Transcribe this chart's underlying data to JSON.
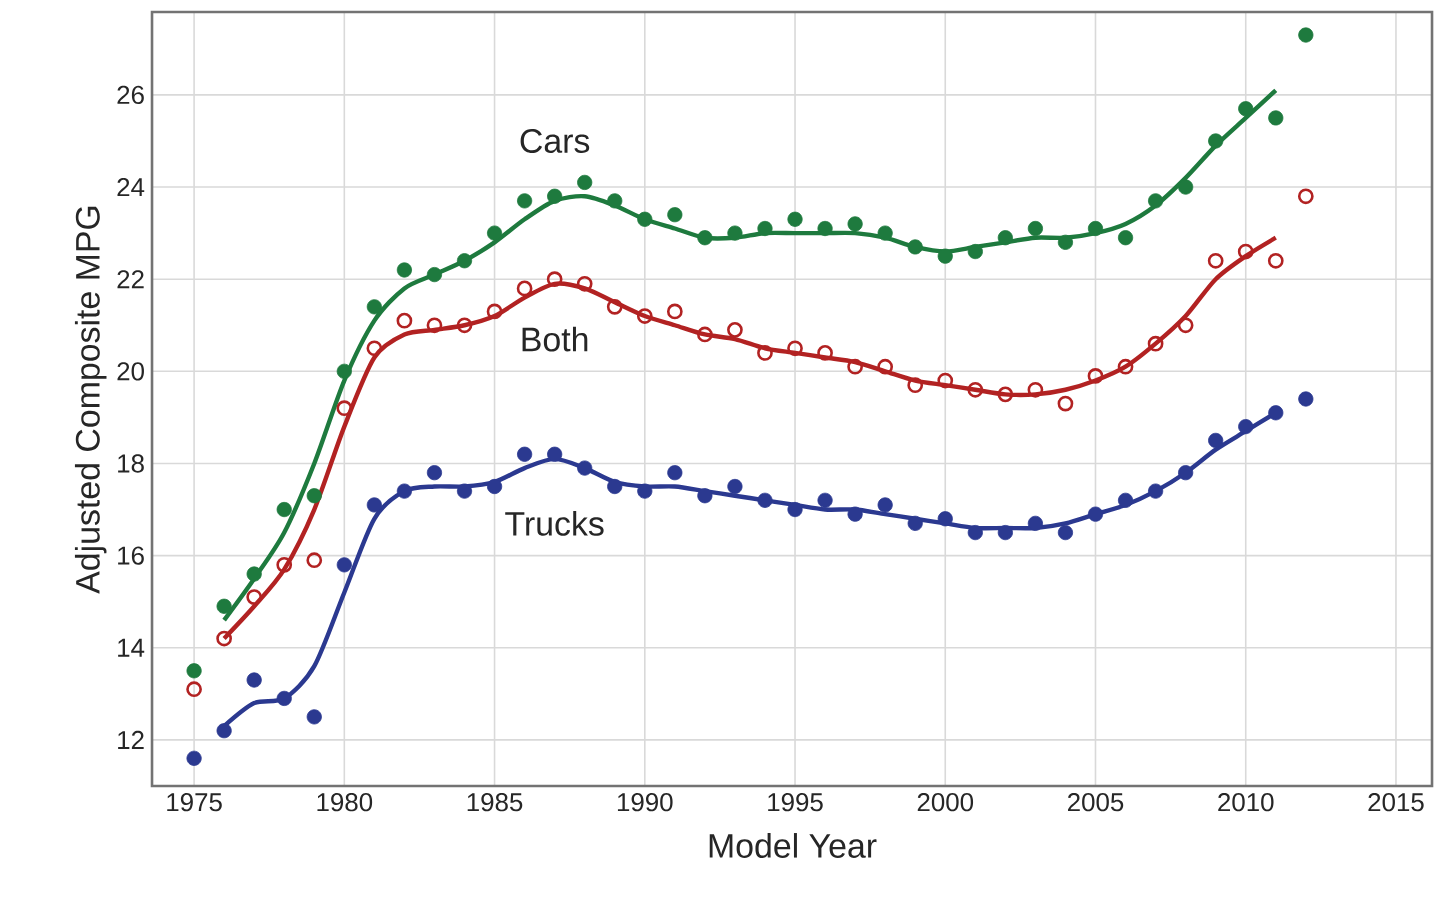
{
  "chart_data": {
    "type": "scatter",
    "xlabel": "Model Year",
    "ylabel": "Adjusted Composite MPG",
    "xlim": [
      1973.6,
      2016.2
    ],
    "ylim": [
      11,
      27.8
    ],
    "xticks": [
      1975,
      1980,
      1985,
      1990,
      1995,
      2000,
      2005,
      2010,
      2015
    ],
    "yticks": [
      12,
      14,
      16,
      18,
      20,
      22,
      24,
      26
    ],
    "grid": true,
    "series": [
      {
        "name": "Cars",
        "marker": "circle",
        "color": "#1e7a3e",
        "x": [
          1975,
          1976,
          1977,
          1978,
          1979,
          1980,
          1981,
          1982,
          1983,
          1984,
          1985,
          1986,
          1987,
          1988,
          1989,
          1990,
          1991,
          1992,
          1993,
          1994,
          1995,
          1996,
          1997,
          1998,
          1999,
          2000,
          2001,
          2002,
          2003,
          2004,
          2005,
          2006,
          2007,
          2008,
          2009,
          2010,
          2011,
          2012
        ],
        "values": [
          13.5,
          14.9,
          15.6,
          17.0,
          17.3,
          20.0,
          21.4,
          22.2,
          22.1,
          22.4,
          23.0,
          23.7,
          23.8,
          24.1,
          23.7,
          23.3,
          23.4,
          22.9,
          23.0,
          23.1,
          23.3,
          23.1,
          23.2,
          23.0,
          22.7,
          22.5,
          22.6,
          22.9,
          23.1,
          22.8,
          23.1,
          22.9,
          23.7,
          24.0,
          25.0,
          25.7,
          25.5,
          27.3
        ]
      },
      {
        "name": "Both",
        "marker": "circle",
        "color": "#b22222",
        "x": [
          1975,
          1976,
          1977,
          1978,
          1979,
          1980,
          1981,
          1982,
          1983,
          1984,
          1985,
          1986,
          1987,
          1988,
          1989,
          1990,
          1991,
          1992,
          1993,
          1994,
          1995,
          1996,
          1997,
          1998,
          1999,
          2000,
          2001,
          2002,
          2003,
          2004,
          2005,
          2006,
          2007,
          2008,
          2009,
          2010,
          2011,
          2012
        ],
        "values": [
          13.1,
          14.2,
          15.1,
          15.8,
          15.9,
          19.2,
          20.5,
          21.1,
          21.0,
          21.0,
          21.3,
          21.8,
          22.0,
          21.9,
          21.4,
          21.2,
          21.3,
          20.8,
          20.9,
          20.4,
          20.5,
          20.4,
          20.1,
          20.1,
          19.7,
          19.8,
          19.6,
          19.5,
          19.6,
          19.3,
          19.9,
          20.1,
          20.6,
          21.0,
          22.4,
          22.6,
          22.4,
          23.8
        ]
      },
      {
        "name": "Trucks",
        "marker": "circle",
        "color": "#2b3990",
        "x": [
          1975,
          1976,
          1977,
          1978,
          1979,
          1980,
          1981,
          1982,
          1983,
          1984,
          1985,
          1986,
          1987,
          1988,
          1989,
          1990,
          1991,
          1992,
          1993,
          1994,
          1995,
          1996,
          1997,
          1998,
          1999,
          2000,
          2001,
          2002,
          2003,
          2004,
          2005,
          2006,
          2007,
          2008,
          2009,
          2010,
          2011,
          2012
        ],
        "values": [
          11.6,
          12.2,
          13.3,
          12.9,
          12.5,
          15.8,
          17.1,
          17.4,
          17.8,
          17.4,
          17.5,
          18.2,
          18.2,
          17.9,
          17.5,
          17.4,
          17.8,
          17.3,
          17.5,
          17.2,
          17.0,
          17.2,
          16.9,
          17.1,
          16.7,
          16.8,
          16.5,
          16.5,
          16.7,
          16.5,
          16.9,
          17.2,
          17.4,
          17.8,
          18.5,
          18.8,
          19.1,
          19.4
        ]
      },
      {
        "type": "line",
        "marker": "none",
        "color": "#1e7a3e",
        "x": [
          1976,
          1977,
          1978,
          1979,
          1980,
          1981,
          1982,
          1983,
          1984,
          1985,
          1986,
          1987,
          1988,
          1989,
          1990,
          1991,
          1992,
          1993,
          1994,
          1995,
          1996,
          1997,
          1998,
          1999,
          2000,
          2001,
          2002,
          2003,
          2004,
          2005,
          2006,
          2007,
          2008,
          2009,
          2010,
          2011
        ],
        "values": [
          14.6,
          15.5,
          16.5,
          18.0,
          19.8,
          21.1,
          21.8,
          22.1,
          22.4,
          22.8,
          23.3,
          23.7,
          23.8,
          23.6,
          23.3,
          23.1,
          22.9,
          22.9,
          23.0,
          23.0,
          23.0,
          23.0,
          22.9,
          22.7,
          22.6,
          22.7,
          22.8,
          22.9,
          22.9,
          23.0,
          23.2,
          23.6,
          24.2,
          24.9,
          25.5,
          26.1
        ]
      },
      {
        "type": "line",
        "marker": "none",
        "color": "#b22222",
        "x": [
          1976,
          1977,
          1978,
          1979,
          1980,
          1981,
          1982,
          1983,
          1984,
          1985,
          1986,
          1987,
          1988,
          1989,
          1990,
          1991,
          1992,
          1993,
          1994,
          1995,
          1996,
          1997,
          1998,
          1999,
          2000,
          2001,
          2002,
          2003,
          2004,
          2005,
          2006,
          2007,
          2008,
          2009,
          2010,
          2011
        ],
        "values": [
          14.2,
          14.9,
          15.7,
          17.0,
          18.8,
          20.3,
          20.8,
          20.9,
          21.0,
          21.2,
          21.6,
          21.9,
          21.8,
          21.5,
          21.2,
          21.0,
          20.8,
          20.7,
          20.5,
          20.4,
          20.3,
          20.2,
          20.0,
          19.8,
          19.7,
          19.6,
          19.5,
          19.5,
          19.6,
          19.8,
          20.1,
          20.6,
          21.2,
          22.0,
          22.5,
          22.9
        ]
      },
      {
        "type": "line",
        "marker": "none",
        "color": "#2b3990",
        "x": [
          1976,
          1977,
          1978,
          1979,
          1980,
          1981,
          1982,
          1983,
          1984,
          1985,
          1986,
          1987,
          1988,
          1989,
          1990,
          1991,
          1992,
          1993,
          1994,
          1995,
          1996,
          1997,
          1998,
          1999,
          2000,
          2001,
          2002,
          2003,
          2004,
          2005,
          2006,
          2007,
          2008,
          2009,
          2010,
          2011
        ],
        "values": [
          12.3,
          12.8,
          12.9,
          13.6,
          15.2,
          16.8,
          17.4,
          17.5,
          17.5,
          17.6,
          17.9,
          18.1,
          17.9,
          17.6,
          17.5,
          17.5,
          17.4,
          17.3,
          17.2,
          17.1,
          17.0,
          17.0,
          16.9,
          16.8,
          16.7,
          16.6,
          16.6,
          16.6,
          16.7,
          16.9,
          17.1,
          17.4,
          17.8,
          18.3,
          18.7,
          19.1
        ]
      }
    ]
  }
}
